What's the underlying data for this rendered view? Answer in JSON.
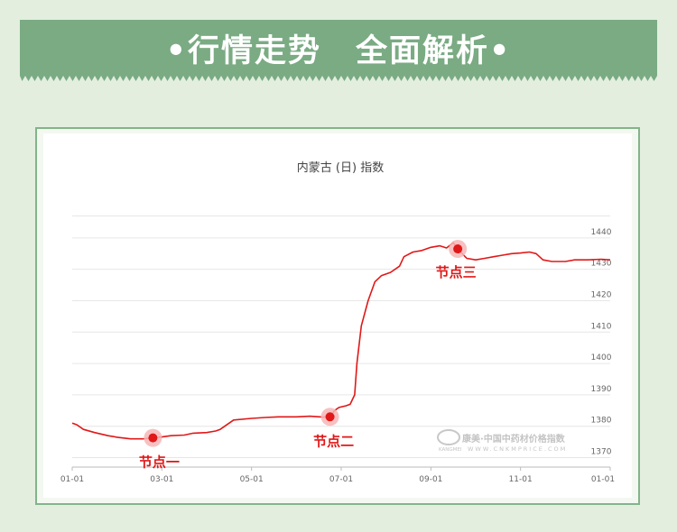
{
  "banner": {
    "left": "•行情走势",
    "right": "全面解析•"
  },
  "colors": {
    "banner": "#7aab83",
    "background": "#e3eedf",
    "line": "#e01818",
    "node": "#e01818",
    "node_halo": "#f6b6b6",
    "grid": "#e6e6e6"
  },
  "chart_data": {
    "type": "line",
    "title": "内蒙古 (日) 指数",
    "x_ticks": [
      "01-01",
      "03-01",
      "05-01",
      "07-01",
      "09-01",
      "11-01",
      "01-01"
    ],
    "y_ticks": [
      1370,
      1380,
      1390,
      1400,
      1410,
      1420,
      1430,
      1440
    ],
    "ylim": [
      1367,
      1448
    ],
    "grid": true,
    "series": [
      {
        "name": "",
        "points": [
          [
            0,
            1381
          ],
          [
            0.1,
            1380.5
          ],
          [
            0.25,
            1379
          ],
          [
            0.5,
            1378
          ],
          [
            0.8,
            1377
          ],
          [
            1.0,
            1376.5
          ],
          [
            1.3,
            1376
          ],
          [
            1.6,
            1376
          ],
          [
            1.8,
            1376.3
          ],
          [
            2.0,
            1376.6
          ],
          [
            2.2,
            1377
          ],
          [
            2.5,
            1377.2
          ],
          [
            2.7,
            1377.8
          ],
          [
            3.0,
            1378
          ],
          [
            3.2,
            1378.5
          ],
          [
            3.3,
            1379
          ],
          [
            3.4,
            1380
          ],
          [
            3.5,
            1381
          ],
          [
            3.6,
            1382
          ],
          [
            4.0,
            1382.5
          ],
          [
            4.3,
            1382.8
          ],
          [
            4.6,
            1383
          ],
          [
            5.0,
            1383
          ],
          [
            5.3,
            1383.2
          ],
          [
            5.6,
            1382.9
          ],
          [
            5.75,
            1383
          ],
          [
            5.85,
            1385
          ],
          [
            5.95,
            1386
          ],
          [
            6.1,
            1386.5
          ],
          [
            6.2,
            1387
          ],
          [
            6.3,
            1390
          ],
          [
            6.35,
            1400
          ],
          [
            6.45,
            1412
          ],
          [
            6.6,
            1420
          ],
          [
            6.75,
            1426
          ],
          [
            6.9,
            1428
          ],
          [
            7.1,
            1429
          ],
          [
            7.3,
            1431
          ],
          [
            7.4,
            1434
          ],
          [
            7.6,
            1435.5
          ],
          [
            7.8,
            1436
          ],
          [
            8.0,
            1437
          ],
          [
            8.2,
            1437.5
          ],
          [
            8.35,
            1436.8
          ],
          [
            8.5,
            1438.5
          ],
          [
            8.6,
            1436.5
          ],
          [
            8.7,
            1435
          ],
          [
            8.8,
            1433.5
          ],
          [
            9.0,
            1433
          ],
          [
            9.2,
            1433.5
          ],
          [
            9.4,
            1434
          ],
          [
            9.6,
            1434.5
          ],
          [
            9.8,
            1435
          ],
          [
            10.0,
            1435.2
          ],
          [
            10.2,
            1435.5
          ],
          [
            10.35,
            1435
          ],
          [
            10.5,
            1433
          ],
          [
            10.7,
            1432.5
          ],
          [
            11.0,
            1432.5
          ],
          [
            11.2,
            1433
          ],
          [
            11.5,
            1433
          ],
          [
            11.8,
            1433.2
          ],
          [
            12.0,
            1433
          ]
        ]
      }
    ],
    "annotations": [
      {
        "label": "节点一",
        "x": 1.8,
        "y": 1376.3
      },
      {
        "label": "节点二",
        "x": 5.75,
        "y": 1383
      },
      {
        "label": "节点三",
        "x": 8.6,
        "y": 1436.5
      }
    ],
    "watermark": {
      "text": "康美·中国中药材价格指数",
      "subtext": "WWW.CNKMPRICE.COM",
      "logo_text": "KANGMEI"
    }
  }
}
